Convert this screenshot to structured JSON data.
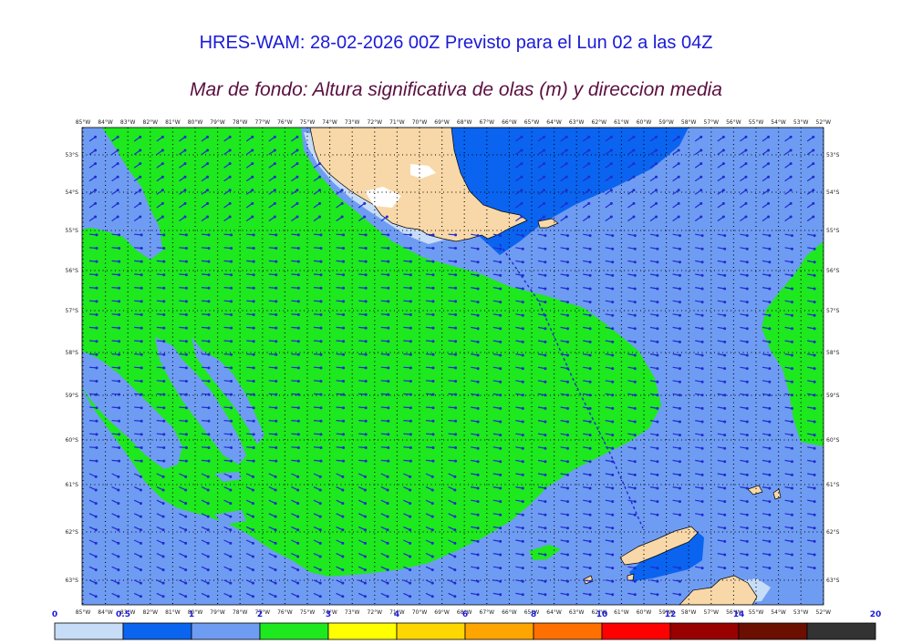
{
  "title": "HRES-WAM: 28-02-2026 00Z Previsto para el Lun 02 a las 04Z",
  "subtitle": "Mar de fondo: Altura significativa de olas (m) y direccion media",
  "lon_labels": [
    "85°W",
    "84°W",
    "83°W",
    "82°W",
    "81°W",
    "80°W",
    "79°W",
    "78°W",
    "77°W",
    "76°W",
    "75°W",
    "74°W",
    "73°W",
    "72°W",
    "71°W",
    "70°W",
    "69°W",
    "68°W",
    "67°W",
    "66°W",
    "65°W",
    "64°W",
    "63°W",
    "62°W",
    "61°W",
    "60°W",
    "59°W",
    "58°W",
    "57°W",
    "56°W",
    "55°W",
    "54°W",
    "53°W",
    "52°W"
  ],
  "lat_labels": [
    "53°S",
    "54°S",
    "55°S",
    "56°S",
    "57°S",
    "58°S",
    "59°S",
    "60°S",
    "61°S",
    "62°S",
    "63°S"
  ],
  "colorbar": {
    "ticks": [
      "0",
      "0.5",
      "1",
      "2",
      "3",
      "4",
      "6",
      "8",
      "10",
      "12",
      "14",
      "20"
    ],
    "colors": [
      "#c6dcf7",
      "#0a64f0",
      "#6f9cf3",
      "#1ee81e",
      "#ffff00",
      "#ffd700",
      "#ffa500",
      "#ff7000",
      "#ff0000",
      "#990000",
      "#6b0f00",
      "#333333"
    ]
  },
  "legend_colors": {
    "sea_0_5_1": "#0a64f0",
    "sea_1_2": "#6f9cf3",
    "sea_2_3": "#1ee81e",
    "land": "#f8d8a8",
    "arrow": "#1f2bd0"
  },
  "chart_data": {
    "type": "heatmap",
    "title": "HRES-WAM: 28-02-2026 00Z Previsto para el Lun 02 a las 04Z",
    "subtitle": "Mar de fondo: Altura significativa de olas (m) y direccion media",
    "lon_range": [
      -85,
      -52
    ],
    "lat_range": [
      -63.3,
      -52.4
    ],
    "grid": true,
    "value_bins_m": [
      0,
      0.5,
      1,
      2,
      3,
      4,
      6,
      8,
      10,
      12,
      14,
      20
    ],
    "dominant_direction": "toward east / east-south-east"
  }
}
